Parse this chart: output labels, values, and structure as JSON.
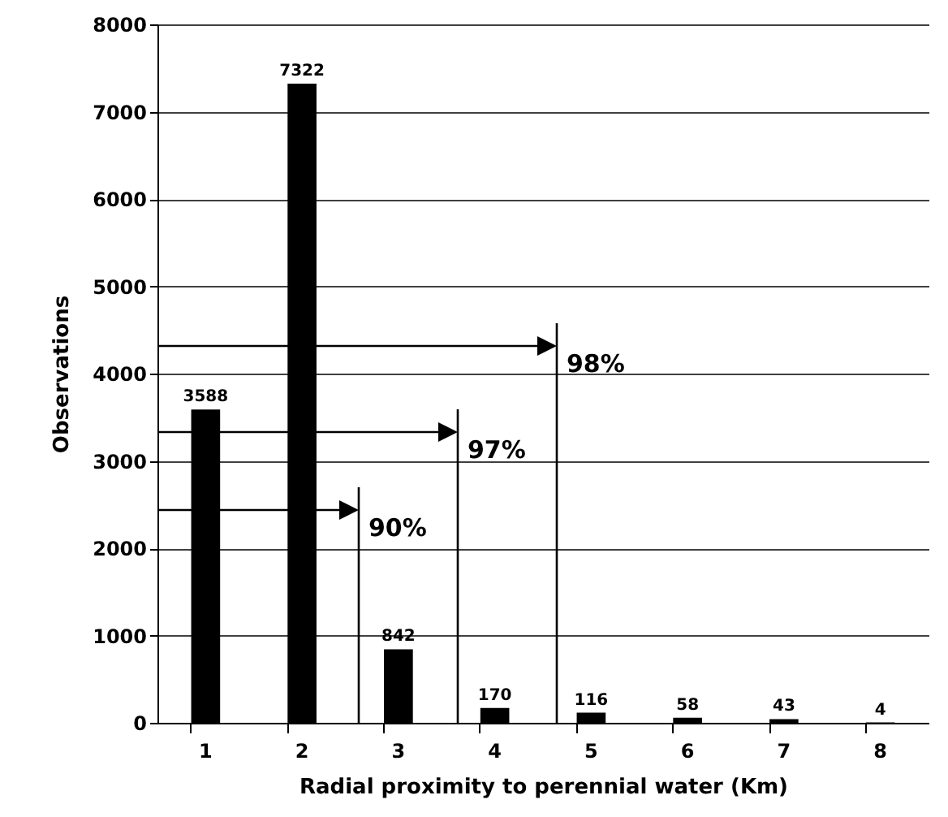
{
  "chart_data": {
    "type": "bar",
    "categories": [
      "1",
      "2",
      "3",
      "4",
      "5",
      "6",
      "7",
      "8"
    ],
    "values": [
      3588,
      7322,
      842,
      170,
      116,
      58,
      43,
      4
    ],
    "color": "#000000",
    "xlabel": "Radial proximity to perennial water (Km)",
    "ylabel": "Observations",
    "ylim": [
      0,
      8000
    ],
    "yticks": [
      0,
      1000,
      2000,
      3000,
      4000,
      5000,
      6000,
      7000,
      8000
    ],
    "grid": "y",
    "data_labels": true,
    "annotations": [
      "90%",
      "97%",
      "98%"
    ]
  }
}
